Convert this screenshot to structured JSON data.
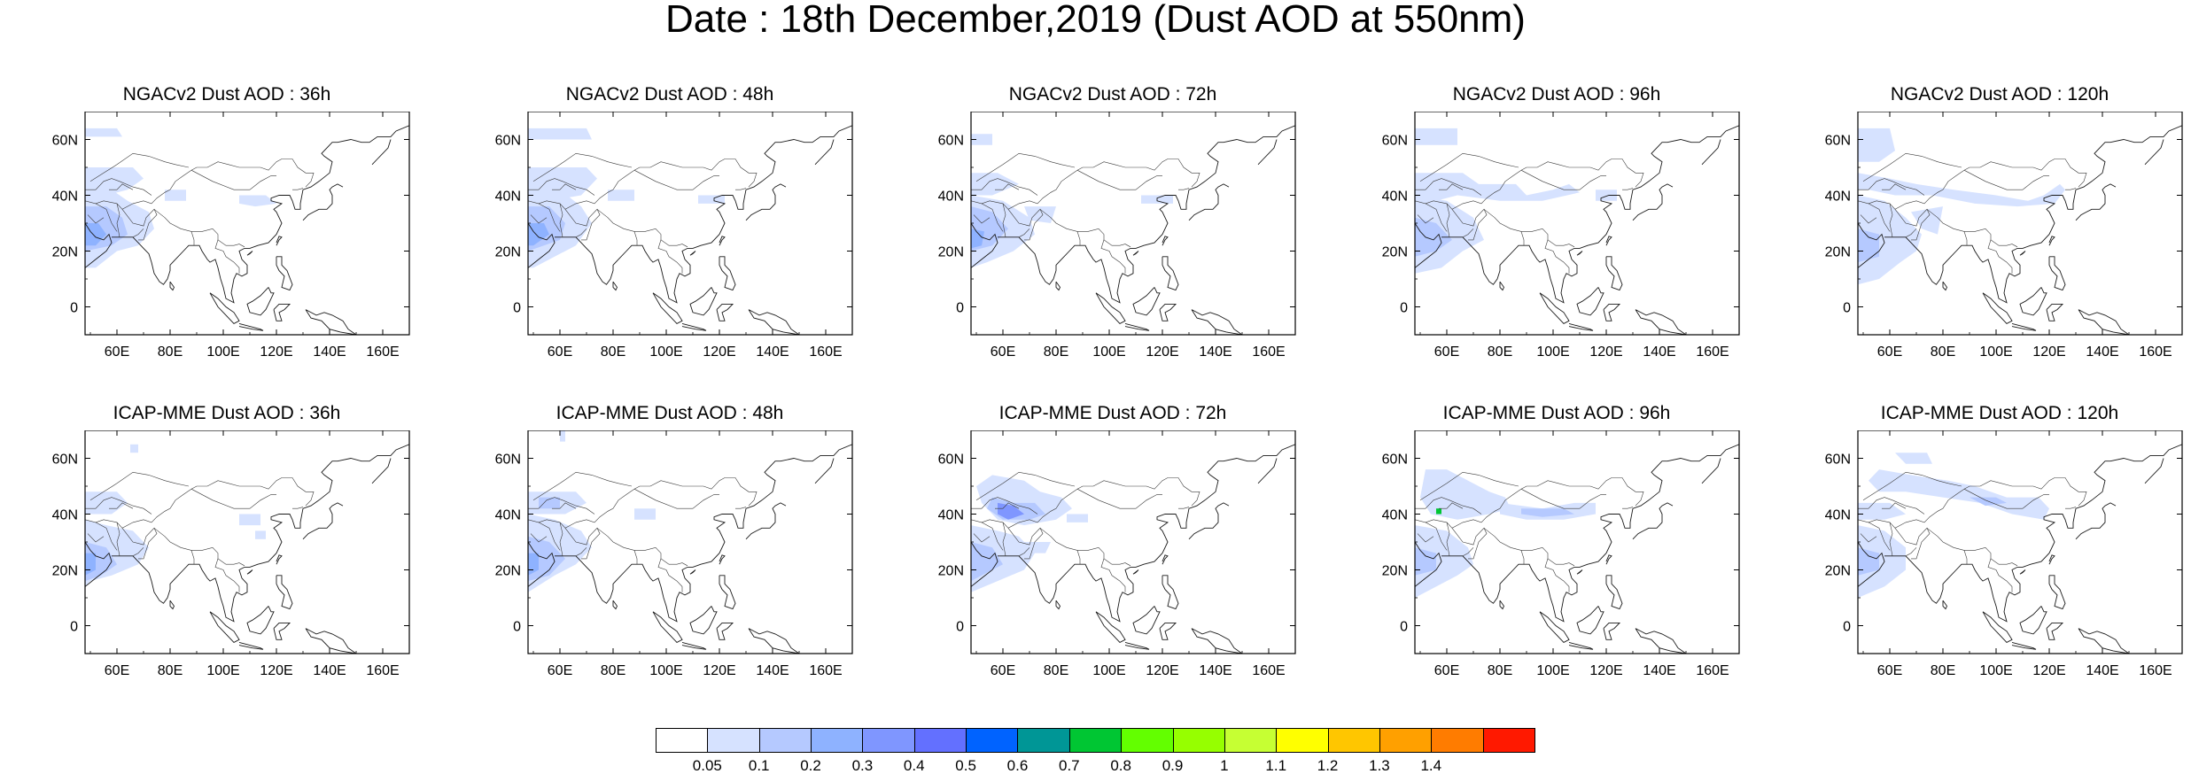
{
  "title": "Date : 18th December,2019 (Dust AOD at 550nm)",
  "panels": [
    {
      "title": "NGACv2 Dust AOD : 36h"
    },
    {
      "title": "NGACv2 Dust AOD : 48h"
    },
    {
      "title": "NGACv2 Dust AOD : 72h"
    },
    {
      "title": "NGACv2 Dust AOD : 96h"
    },
    {
      "title": "NGACv2 Dust AOD : 120h"
    },
    {
      "title": "ICAP-MME Dust AOD : 36h"
    },
    {
      "title": "ICAP-MME Dust AOD : 48h"
    },
    {
      "title": "ICAP-MME Dust AOD : 72h"
    },
    {
      "title": "ICAP-MME Dust AOD : 96h"
    },
    {
      "title": "ICAP-MME Dust AOD : 120h"
    }
  ],
  "axes": {
    "lon_labels": [
      "60E",
      "80E",
      "100E",
      "120E",
      "140E",
      "160E"
    ],
    "lon_values": [
      60,
      80,
      100,
      120,
      140,
      160
    ],
    "lat_labels": [
      "60N",
      "40N",
      "20N",
      "0"
    ],
    "lat_values": [
      60,
      40,
      20,
      0
    ],
    "lon_range": [
      48,
      170
    ],
    "lat_range": [
      -10,
      70
    ]
  },
  "colorbar": {
    "labels": [
      "0.05",
      "0.1",
      "0.2",
      "0.3",
      "0.4",
      "0.5",
      "0.6",
      "0.7",
      "0.8",
      "0.9",
      "1",
      "1.1",
      "1.2",
      "1.3",
      "1.4"
    ],
    "colors": [
      "#ffffff",
      "#d6e2ff",
      "#b5c9ff",
      "#8eb2ff",
      "#7f96ff",
      "#6370ff",
      "#0063ff",
      "#009696",
      "#00c633",
      "#63ff00",
      "#96ff00",
      "#c6ff33",
      "#ffff00",
      "#ffc600",
      "#ffa000",
      "#ff7c00",
      "#ff1900"
    ]
  }
}
